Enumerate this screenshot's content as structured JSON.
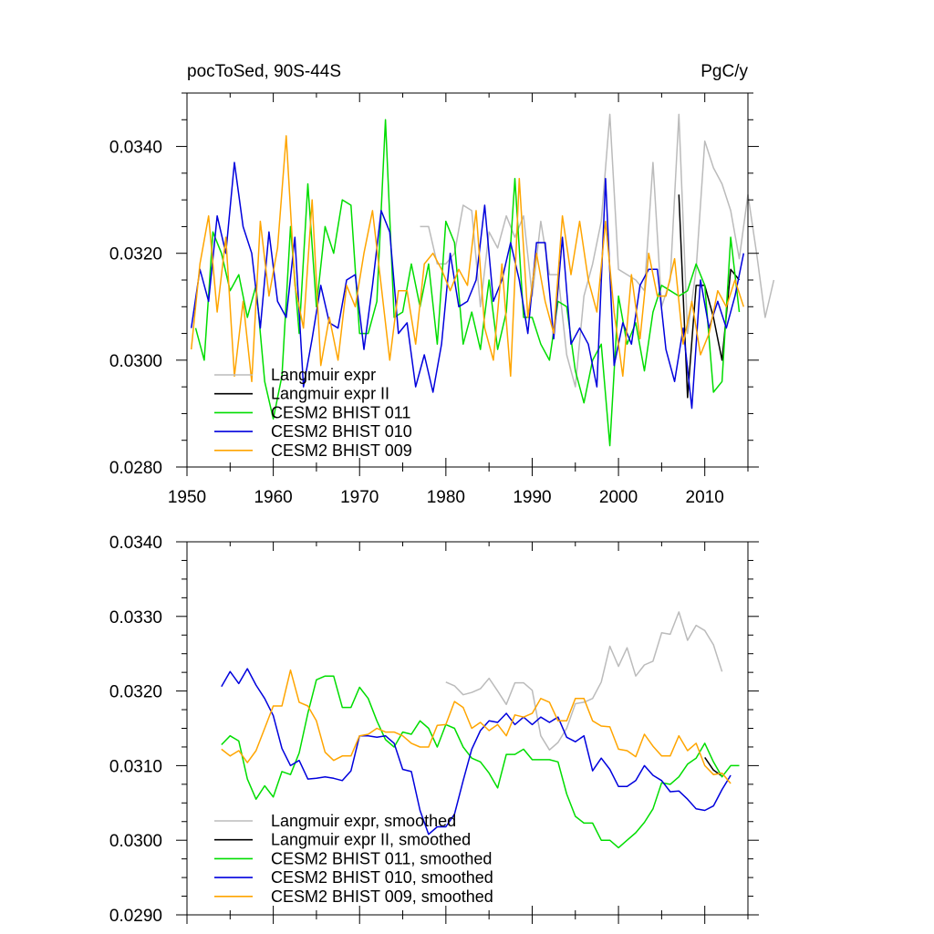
{
  "chart_data": [
    {
      "type": "line",
      "title": "pocToSed, 90S-44S",
      "units": "PgC/y",
      "xlim": [
        1950,
        2015
      ],
      "ylim": [
        0.028,
        0.035
      ],
      "x_ticks": [
        1950,
        1960,
        1970,
        1980,
        1990,
        2000,
        2010
      ],
      "y_ticks": [
        0.028,
        0.03,
        0.032,
        0.034
      ],
      "x_tick_labels": [
        "1950",
        "1960",
        "1970",
        "1980",
        "1990",
        "2000",
        "2010"
      ],
      "y_tick_labels": [
        "0.0280",
        "0.0300",
        "0.0320",
        "0.0340"
      ],
      "legend_position": "bottom-left",
      "series": [
        {
          "name": "Langmuir expr",
          "color": "#bbbbbb",
          "x_start": 1977,
          "x_step": 1,
          "values": [
            0.0325,
            0.0325,
            0.0318,
            0.0318,
            0.032,
            0.0329,
            0.0328,
            0.031,
            0.0324,
            0.0321,
            0.0327,
            0.0323,
            0.0327,
            0.0312,
            0.0326,
            0.0316,
            0.0316,
            0.0301,
            0.0295,
            0.0312,
            0.0318,
            0.0326,
            0.0346,
            0.0317,
            0.0316,
            0.0315,
            0.0313,
            0.0337,
            0.031,
            0.0315,
            0.0346,
            0.0305,
            0.0317,
            0.0341,
            0.0336,
            0.0333,
            0.0328,
            0.0319,
            0.0331,
            0.032,
            0.0308,
            0.0315
          ]
        },
        {
          "name": "Langmuir expr II",
          "color": "#000000",
          "x_start": 2007,
          "x_step": 1,
          "values": [
            0.0331,
            0.0293,
            0.0314,
            0.0314,
            0.0308,
            0.03,
            0.0317,
            0.0315
          ]
        },
        {
          "name": "CESM2 BHIST 011",
          "color": "#00dd00",
          "x_start": 1951,
          "x_step": 1,
          "values": [
            0.0306,
            0.03,
            0.0324,
            0.032,
            0.0313,
            0.0316,
            0.0308,
            0.0314,
            0.0296,
            0.0289,
            0.0297,
            0.0325,
            0.0305,
            0.0333,
            0.031,
            0.0325,
            0.032,
            0.033,
            0.0329,
            0.0305,
            0.0305,
            0.0311,
            0.0345,
            0.0308,
            0.0309,
            0.0318,
            0.031,
            0.0318,
            0.0303,
            0.0326,
            0.0322,
            0.0303,
            0.0309,
            0.0302,
            0.0315,
            0.0302,
            0.0309,
            0.0334,
            0.0308,
            0.0308,
            0.0303,
            0.03,
            0.0311,
            0.031,
            0.0298,
            0.0292,
            0.03,
            0.0303,
            0.0284,
            0.0312,
            0.0303,
            0.0307,
            0.0298,
            0.0309,
            0.0314,
            0.0313,
            0.0312,
            0.0313,
            0.0318,
            0.0314,
            0.0294,
            0.0296,
            0.0323,
            0.0309
          ]
        },
        {
          "name": "CESM2 BHIST 010",
          "color": "#0000dd",
          "x_start": 1950.5,
          "x_step": 1,
          "values": [
            0.0306,
            0.0317,
            0.0311,
            0.0327,
            0.032,
            0.0337,
            0.0325,
            0.032,
            0.0306,
            0.0324,
            0.0311,
            0.0308,
            0.0323,
            0.0295,
            0.0304,
            0.0314,
            0.0307,
            0.0306,
            0.0315,
            0.0316,
            0.0302,
            0.0314,
            0.0328,
            0.0324,
            0.0305,
            0.0307,
            0.0295,
            0.0301,
            0.0294,
            0.0303,
            0.032,
            0.031,
            0.0311,
            0.0315,
            0.0329,
            0.0311,
            0.0315,
            0.0322,
            0.0315,
            0.0305,
            0.0322,
            0.0322,
            0.0304,
            0.0323,
            0.0303,
            0.0306,
            0.0303,
            0.0295,
            0.0334,
            0.0299,
            0.0307,
            0.0303,
            0.0314,
            0.0317,
            0.0317,
            0.0302,
            0.0296,
            0.0306,
            0.0291,
            0.0315,
            0.0306,
            0.0311,
            0.0306,
            0.0312,
            0.032
          ]
        },
        {
          "name": "CESM2 BHIST 009",
          "color": "#ffa500",
          "x_start": 1950.5,
          "x_step": 1,
          "values": [
            0.0302,
            0.0318,
            0.0327,
            0.0309,
            0.0323,
            0.0297,
            0.0311,
            0.0296,
            0.0326,
            0.0312,
            0.0321,
            0.0342,
            0.0314,
            0.0306,
            0.033,
            0.0299,
            0.0308,
            0.03,
            0.0314,
            0.031,
            0.032,
            0.0328,
            0.0314,
            0.03,
            0.0313,
            0.0313,
            0.0303,
            0.0318,
            0.032,
            0.0317,
            0.0313,
            0.0317,
            0.0314,
            0.0328,
            0.0306,
            0.03,
            0.0318,
            0.0297,
            0.0334,
            0.0308,
            0.032,
            0.0311,
            0.0305,
            0.0327,
            0.0316,
            0.0326,
            0.0315,
            0.0309,
            0.0326,
            0.0309,
            0.0297,
            0.0316,
            0.0304,
            0.032,
            0.0312,
            0.0312,
            0.0319,
            0.0303,
            0.0311,
            0.0301,
            0.0305,
            0.0313,
            0.031,
            0.0315,
            0.031
          ]
        }
      ]
    },
    {
      "type": "line",
      "xlim": [
        1950,
        2015
      ],
      "ylim": [
        0.029,
        0.034
      ],
      "x_ticks": [
        1950,
        1960,
        1970,
        1980,
        1990,
        2000,
        2010
      ],
      "y_ticks": [
        0.029,
        0.03,
        0.031,
        0.032,
        0.033,
        0.034
      ],
      "y_tick_labels": [
        "0.0290",
        "0.0300",
        "0.0310",
        "0.0320",
        "0.0330",
        "0.0340"
      ],
      "legend_position": "bottom-left",
      "series": [
        {
          "name": "Langmuir expr, smoothed",
          "color": "#bbbbbb",
          "x_start": 1980,
          "x_step": 1,
          "values": [
            0.03212,
            0.03207,
            0.03195,
            0.03198,
            0.03203,
            0.03217,
            0.032,
            0.03182,
            0.03211,
            0.03211,
            0.03201,
            0.0314,
            0.03121,
            0.03131,
            0.0315,
            0.03183,
            0.03185,
            0.0319,
            0.03212,
            0.0326,
            0.03233,
            0.03258,
            0.0322,
            0.03235,
            0.0324,
            0.03278,
            0.03276,
            0.03306,
            0.03268,
            0.03288,
            0.03281,
            0.03262,
            0.03226
          ]
        },
        {
          "name": "Langmuir expr II, smoothed",
          "color": "#000000",
          "x_start": 2010,
          "x_step": 1,
          "values": [
            0.03111,
            0.03094,
            0.03086
          ]
        },
        {
          "name": "CESM2 BHIST 011, smoothed",
          "color": "#00dd00",
          "x_start": 1954,
          "x_step": 1,
          "values": [
            0.03128,
            0.0314,
            0.03133,
            0.03082,
            0.03055,
            0.03073,
            0.03058,
            0.03092,
            0.03088,
            0.03117,
            0.0317,
            0.03215,
            0.0322,
            0.0322,
            0.03178,
            0.03178,
            0.03205,
            0.0319,
            0.0316,
            0.03135,
            0.03125,
            0.03145,
            0.03142,
            0.0316,
            0.0315,
            0.03125,
            0.03155,
            0.0315,
            0.03125,
            0.0311,
            0.03105,
            0.0309,
            0.0307,
            0.03115,
            0.03115,
            0.03122,
            0.03108,
            0.03108,
            0.03108,
            0.03105,
            0.03062,
            0.03032,
            0.03023,
            0.03023,
            0.03,
            0.03,
            0.0299,
            0.03,
            0.0301,
            0.03024,
            0.03042,
            0.03077,
            0.03075,
            0.03085,
            0.03102,
            0.0311,
            0.0313,
            0.03105,
            0.03085,
            0.031,
            0.031
          ]
        },
        {
          "name": "CESM2 BHIST 010, smoothed",
          "color": "#0000dd",
          "x_start": 1954,
          "x_step": 1,
          "values": [
            0.03206,
            0.03226,
            0.0321,
            0.0323,
            0.03208,
            0.0319,
            0.03167,
            0.03123,
            0.031,
            0.03107,
            0.03082,
            0.03083,
            0.03085,
            0.03083,
            0.0308,
            0.03093,
            0.0314,
            0.0314,
            0.03138,
            0.0314,
            0.0313,
            0.03095,
            0.03092,
            0.0304,
            0.03008,
            0.03018,
            0.03018,
            0.03035,
            0.0308,
            0.03122,
            0.03147,
            0.0316,
            0.03158,
            0.0317,
            0.03155,
            0.03165,
            0.03155,
            0.03165,
            0.03158,
            0.03165,
            0.03138,
            0.03132,
            0.0314,
            0.03093,
            0.0311,
            0.03095,
            0.03072,
            0.03072,
            0.0308,
            0.031,
            0.03087,
            0.0308,
            0.03065,
            0.03066,
            0.03055,
            0.03042,
            0.0304,
            0.03046,
            0.03068,
            0.03087
          ]
        },
        {
          "name": "CESM2 BHIST 009, smoothed",
          "color": "#ffa500",
          "x_start": 1954,
          "x_step": 1,
          "values": [
            0.03122,
            0.03113,
            0.0312,
            0.03104,
            0.0312,
            0.0315,
            0.0318,
            0.0318,
            0.03228,
            0.03185,
            0.0318,
            0.0316,
            0.03118,
            0.03107,
            0.03113,
            0.03113,
            0.0314,
            0.03142,
            0.0315,
            0.03145,
            0.03145,
            0.0314,
            0.0313,
            0.03125,
            0.03125,
            0.03154,
            0.03155,
            0.03186,
            0.03178,
            0.0315,
            0.03158,
            0.03147,
            0.03155,
            0.0314,
            0.03168,
            0.03165,
            0.0317,
            0.0319,
            0.03185,
            0.0316,
            0.0316,
            0.0319,
            0.0319,
            0.0316,
            0.03153,
            0.03152,
            0.03122,
            0.0312,
            0.03112,
            0.03142,
            0.03126,
            0.03113,
            0.03113,
            0.0314,
            0.0312,
            0.0313,
            0.031,
            0.03088,
            0.0309,
            0.03076
          ]
        }
      ]
    }
  ]
}
